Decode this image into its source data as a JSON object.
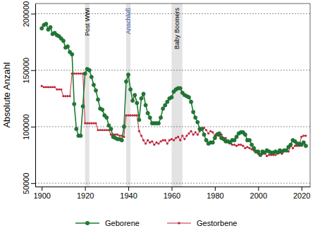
{
  "chart_data": {
    "type": "line",
    "y_label": "Absolute Anzahl",
    "x": [
      1900,
      1901,
      1902,
      1903,
      1904,
      1905,
      1906,
      1907,
      1908,
      1909,
      1910,
      1911,
      1912,
      1913,
      1914,
      1915,
      1916,
      1917,
      1918,
      1919,
      1920,
      1921,
      1922,
      1923,
      1924,
      1925,
      1926,
      1927,
      1928,
      1929,
      1930,
      1931,
      1932,
      1933,
      1934,
      1935,
      1936,
      1937,
      1938,
      1939,
      1940,
      1941,
      1942,
      1943,
      1944,
      1945,
      1946,
      1947,
      1948,
      1949,
      1950,
      1951,
      1952,
      1953,
      1954,
      1955,
      1956,
      1957,
      1958,
      1959,
      1960,
      1961,
      1962,
      1963,
      1964,
      1965,
      1966,
      1967,
      1968,
      1969,
      1970,
      1971,
      1972,
      1973,
      1974,
      1975,
      1976,
      1977,
      1978,
      1979,
      1980,
      1981,
      1982,
      1983,
      1984,
      1985,
      1986,
      1987,
      1988,
      1989,
      1990,
      1991,
      1992,
      1993,
      1994,
      1995,
      1996,
      1997,
      1998,
      1999,
      2000,
      2001,
      2002,
      2003,
      2004,
      2005,
      2006,
      2007,
      2008,
      2009,
      2010,
      2011,
      2012,
      2013,
      2014,
      2015,
      2016,
      2017,
      2018,
      2019,
      2020,
      2021,
      2022
    ],
    "series": [
      {
        "name": "Geborene",
        "color": "#1f7a34",
        "marker": "circle",
        "line_style": "solid",
        "values": [
          187000,
          190000,
          191000,
          186000,
          188000,
          182000,
          183000,
          181000,
          180000,
          178000,
          176000,
          170000,
          171000,
          166000,
          164000,
          120000,
          98000,
          92000,
          92000,
          118000,
          147000,
          151000,
          150000,
          144000,
          137000,
          132000,
          124000,
          116000,
          115000,
          110000,
          108000,
          101000,
          98000,
          91000,
          90000,
          89000,
          89000,
          88000,
          100000,
          140000,
          146000,
          133000,
          123000,
          128000,
          121000,
          106000,
          125000,
          129000,
          119000,
          112000,
          108000,
          103000,
          103000,
          103000,
          103000,
          108000,
          116000,
          119000,
          122000,
          125000,
          126000,
          131000,
          133000,
          134000,
          134000,
          130000,
          128000,
          127000,
          126000,
          122000,
          113000,
          108000,
          104000,
          98000,
          98000,
          93000,
          88000,
          85000,
          86000,
          86000,
          90000,
          93000,
          94000,
          90000,
          89000,
          87000,
          87000,
          86000,
          88000,
          88000,
          91000,
          94000,
          95000,
          95000,
          93000,
          88000,
          88000,
          84000,
          81000,
          78000,
          78000,
          75000,
          78000,
          77000,
          79000,
          78000,
          77000,
          77000,
          78000,
          77000,
          79000,
          78000,
          79000,
          79000,
          82000,
          84000,
          88000,
          87000,
          85000,
          85000,
          84000,
          86000,
          83000
        ]
      },
      {
        "name": "Gestorbene",
        "color": "#c0283a",
        "marker": "circle",
        "line_style": "solid",
        "values": [
          136000,
          135000,
          135000,
          135000,
          135000,
          135000,
          135000,
          133000,
          133000,
          133000,
          127000,
          127000,
          127000,
          127000,
          147000,
          147000,
          147000,
          147000,
          147000,
          147000,
          103000,
          103000,
          103000,
          103000,
          103000,
          103000,
          97000,
          97000,
          97000,
          97000,
          97000,
          97000,
          93000,
          93000,
          93000,
          93000,
          92000,
          92000,
          91000,
          110000,
          110000,
          110000,
          110000,
          110000,
          110000,
          96000,
          92000,
          88000,
          85000,
          88000,
          86000,
          87000,
          84000,
          86000,
          85000,
          87000,
          88000,
          88000,
          85000,
          88000,
          89000,
          88000,
          90000,
          91000,
          88000,
          92000,
          89000,
          92000,
          94000,
          96000,
          93000,
          95000,
          93000,
          96000,
          98000,
          99000,
          97000,
          94000,
          96000,
          95000,
          92000,
          94000,
          92000,
          93000,
          90000,
          90000,
          87000,
          86000,
          84000,
          84000,
          83000,
          84000,
          84000,
          83000,
          81000,
          82000,
          81000,
          80000,
          79000,
          78000,
          76000,
          75000,
          76000,
          77000,
          74000,
          75000,
          75000,
          75000,
          75000,
          77000,
          77000,
          76000,
          79000,
          79000,
          78000,
          83000,
          81000,
          83000,
          83000,
          83000,
          91000,
          92000,
          92000
        ]
      }
    ],
    "annotations": [
      {
        "text": "Post WWI",
        "x": [
          1920,
          1922
        ],
        "color": "#000000"
      },
      {
        "text": "Anschluß",
        "x": [
          1939,
          1941
        ],
        "color": "#3a5fa8"
      },
      {
        "text": "Baby Boomers",
        "x": [
          1960,
          1965
        ],
        "color": "#000000"
      }
    ],
    "xlim": [
      1897,
      2024
    ],
    "xticks": [
      1900,
      1920,
      1940,
      1960,
      1980,
      2000,
      2020
    ],
    "ylim": [
      47000,
      209000
    ],
    "yticks": [
      50000,
      100000,
      150000,
      200000
    ],
    "grid": true,
    "legend": "bottom"
  }
}
